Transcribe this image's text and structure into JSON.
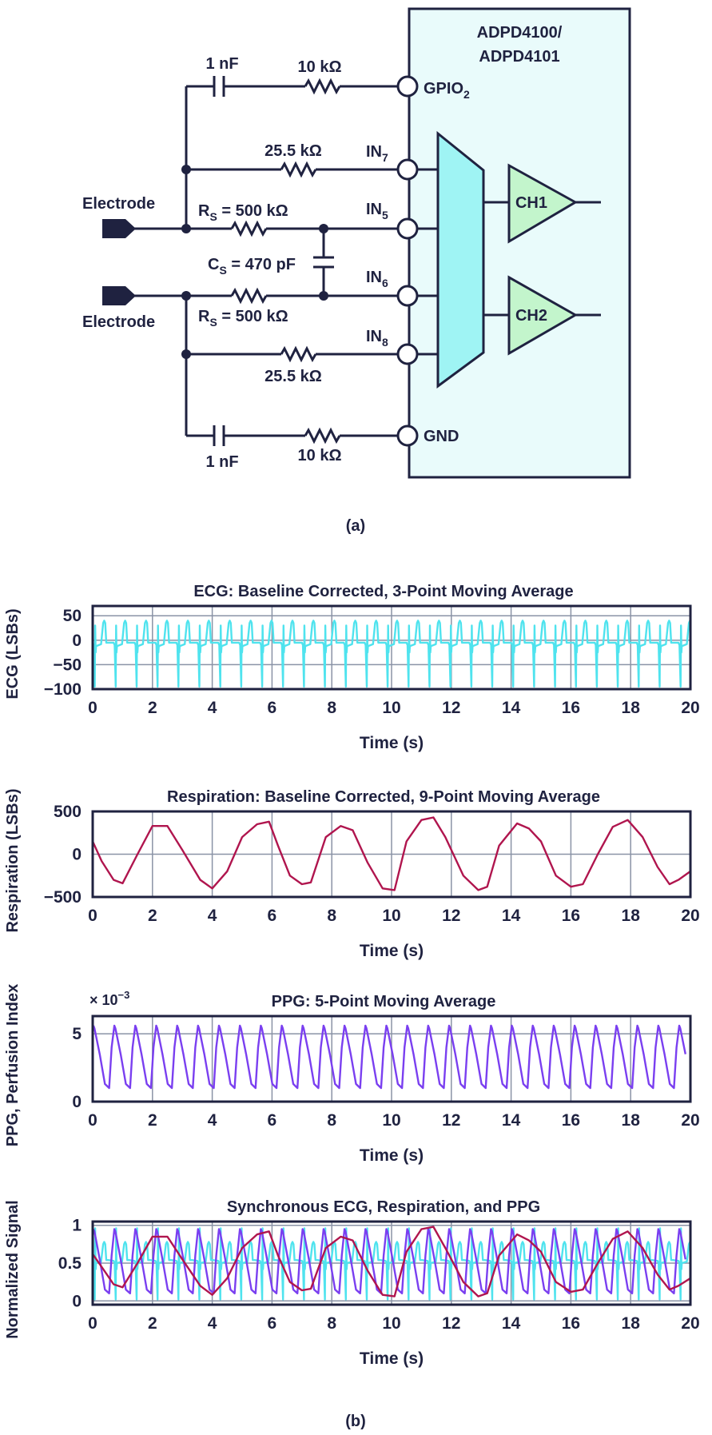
{
  "schematic": {
    "chip_name_line1": "ADPD4100/",
    "chip_name_line2": "ADPD4101",
    "cap_top": "1 nF",
    "res_top": "10 kΩ",
    "pin_gpio": "GPIO",
    "pin_gpio_sub": "2",
    "res_in7": "25.5 kΩ",
    "pin_in": "IN",
    "in7_sub": "7",
    "electrode_top": "Electrode",
    "rs_top_label": "R",
    "rs_sub": "S",
    "rs_value": " = 500 kΩ",
    "pin_in5_sub": "5",
    "cs_label": "C",
    "cs_sub": "S",
    "cs_value": " = 470 pF",
    "pin_in6_sub": "6",
    "electrode_bottom": "Electrode",
    "pin_in8_sub": "8",
    "res_in8": "25.5 kΩ",
    "cap_bottom": "1 nF",
    "res_bottom": "10 kΩ",
    "pin_gnd": "GND",
    "ch1": "CH1",
    "ch2": "CH2",
    "caption": "(a)"
  },
  "colors": {
    "ink": "#1f2240",
    "chip_fill": "#e9fbfb",
    "mux_fill": "#9ff4f4",
    "amp_fill": "#c3f5cc",
    "ecg": "#4fe3ee",
    "resp": "#b0154e",
    "ppg": "#7a3ff0",
    "grid": "#8a93a6"
  },
  "caption_b": "(b)",
  "chart_data": [
    {
      "type": "line",
      "title": "ECG: Baseline Corrected, 3-Point Moving Average",
      "xlabel": "Time (s)",
      "ylabel": "ECG (LSBs)",
      "xlim": [
        0,
        20
      ],
      "ylim": [
        -100,
        70
      ],
      "xticks": [
        0,
        2,
        4,
        6,
        8,
        10,
        12,
        14,
        16,
        18,
        20
      ],
      "yticks": [
        50,
        0,
        -50,
        -100
      ],
      "ytick_labels": [
        "50",
        "0",
        "−50",
        "−100"
      ],
      "grid": true,
      "series": [
        {
          "color": "#4fe3ee",
          "periodic": true,
          "period": 0.7,
          "start": 0,
          "shape_phase": [
            0,
            0.05,
            0.1,
            0.12,
            0.14,
            0.16,
            0.4,
            0.5,
            0.55,
            0.6,
            0.65,
            0.75,
            1
          ],
          "shape_value": [
            -5,
            -10,
            -95,
            30,
            -25,
            -12,
            -8,
            35,
            40,
            35,
            -5,
            -5,
            -5
          ]
        }
      ]
    },
    {
      "type": "line",
      "title": "Respiration: Baseline Corrected, 9-Point Moving Average",
      "xlabel": "Time (s)",
      "ylabel": "Respiration (LSBs)",
      "xlim": [
        0,
        20
      ],
      "ylim": [
        -500,
        500
      ],
      "xticks": [
        0,
        2,
        4,
        6,
        8,
        10,
        12,
        14,
        16,
        18,
        20
      ],
      "yticks": [
        500,
        0,
        -500
      ],
      "ytick_labels": [
        "500",
        "0",
        "−500"
      ],
      "grid": true,
      "series": [
        {
          "color": "#b0154e",
          "x": [
            0,
            0.3,
            0.7,
            1.0,
            1.5,
            2.0,
            2.5,
            3.0,
            3.6,
            4.0,
            4.5,
            5.0,
            5.5,
            5.9,
            6.2,
            6.6,
            7.0,
            7.3,
            7.8,
            8.3,
            8.7,
            9.2,
            9.7,
            10.1,
            10.5,
            11.0,
            11.4,
            11.8,
            12.4,
            12.9,
            13.2,
            13.6,
            14.2,
            14.6,
            15.0,
            15.5,
            16.0,
            16.4,
            16.9,
            17.4,
            17.9,
            18.4,
            18.9,
            19.3,
            19.6,
            20.0
          ],
          "y": [
            150,
            -80,
            -300,
            -340,
            0,
            330,
            330,
            50,
            -300,
            -400,
            -200,
            200,
            350,
            380,
            100,
            -250,
            -350,
            -330,
            200,
            330,
            280,
            -100,
            -400,
            -420,
            150,
            400,
            430,
            200,
            -250,
            -420,
            -380,
            100,
            360,
            300,
            150,
            -250,
            -380,
            -350,
            0,
            320,
            400,
            200,
            -150,
            -350,
            -300,
            -200
          ]
        }
      ]
    },
    {
      "type": "line",
      "title": "PPG: 5-Point Moving Average",
      "xlabel": "Time (s)",
      "ylabel": "PPG, Perfusion Index",
      "y_multiplier": "× 10",
      "y_multiplier_exp": "−3",
      "xlim": [
        0,
        20
      ],
      "ylim": [
        0,
        6.3
      ],
      "xticks": [
        0,
        2,
        4,
        6,
        8,
        10,
        12,
        14,
        16,
        18,
        20
      ],
      "yticks": [
        5,
        0
      ],
      "ytick_labels": [
        "5",
        "0"
      ],
      "grid": true,
      "series": [
        {
          "color": "#7a3ff0",
          "periodic": true,
          "period": 0.7,
          "start": -0.15,
          "shape_phase": [
            0,
            0.12,
            0.25,
            0.3,
            0.55,
            0.8,
            1
          ],
          "shape_value": [
            1.0,
            4.0,
            5.6,
            5.4,
            3.5,
            1.3,
            1.0
          ]
        }
      ]
    },
    {
      "type": "line",
      "title": "Synchronous ECG, Respiration, and PPG",
      "xlabel": "Time (s)",
      "ylabel": "Normalized Signal",
      "xlim": [
        0,
        20
      ],
      "ylim": [
        -0.05,
        1.05
      ],
      "xticks": [
        0,
        2,
        4,
        6,
        8,
        10,
        12,
        14,
        16,
        18,
        20
      ],
      "yticks": [
        1,
        0.5,
        0
      ],
      "ytick_labels": [
        "1",
        "0.5",
        "0"
      ],
      "grid": true,
      "series": [
        {
          "color": "#4fe3ee",
          "periodic": true,
          "period": 0.7,
          "start": 0,
          "shape_phase": [
            0,
            0.05,
            0.1,
            0.12,
            0.14,
            0.16,
            0.4,
            0.5,
            0.55,
            0.6,
            0.65,
            0.75,
            1
          ],
          "shape_value": [
            0.53,
            0.5,
            0.02,
            0.96,
            0.42,
            0.5,
            0.52,
            0.75,
            0.78,
            0.75,
            0.54,
            0.54,
            0.53
          ]
        },
        {
          "color": "#7a3ff0",
          "periodic": true,
          "period": 0.7,
          "start": -0.15,
          "shape_phase": [
            0,
            0.12,
            0.25,
            0.3,
            0.55,
            0.8,
            1
          ],
          "shape_value": [
            0.1,
            0.6,
            0.95,
            0.92,
            0.55,
            0.15,
            0.1
          ]
        },
        {
          "color": "#b0154e",
          "x": [
            0,
            0.3,
            0.7,
            1.0,
            1.5,
            2.0,
            2.5,
            3.0,
            3.6,
            4.0,
            4.5,
            5.0,
            5.5,
            5.9,
            6.2,
            6.6,
            7.0,
            7.3,
            7.8,
            8.3,
            8.7,
            9.2,
            9.7,
            10.1,
            10.5,
            11.0,
            11.4,
            11.8,
            12.4,
            12.9,
            13.2,
            13.6,
            14.2,
            14.6,
            15.0,
            15.5,
            16.0,
            16.4,
            16.9,
            17.4,
            17.9,
            18.4,
            18.9,
            19.3,
            19.6,
            20.0
          ],
          "y": [
            0.62,
            0.45,
            0.22,
            0.18,
            0.5,
            0.85,
            0.85,
            0.55,
            0.2,
            0.08,
            0.3,
            0.7,
            0.88,
            0.92,
            0.6,
            0.25,
            0.14,
            0.16,
            0.7,
            0.85,
            0.8,
            0.4,
            0.08,
            0.06,
            0.65,
            0.95,
            0.98,
            0.7,
            0.25,
            0.06,
            0.1,
            0.6,
            0.88,
            0.8,
            0.65,
            0.25,
            0.12,
            0.15,
            0.5,
            0.82,
            0.92,
            0.7,
            0.35,
            0.15,
            0.2,
            0.3
          ]
        }
      ]
    }
  ]
}
